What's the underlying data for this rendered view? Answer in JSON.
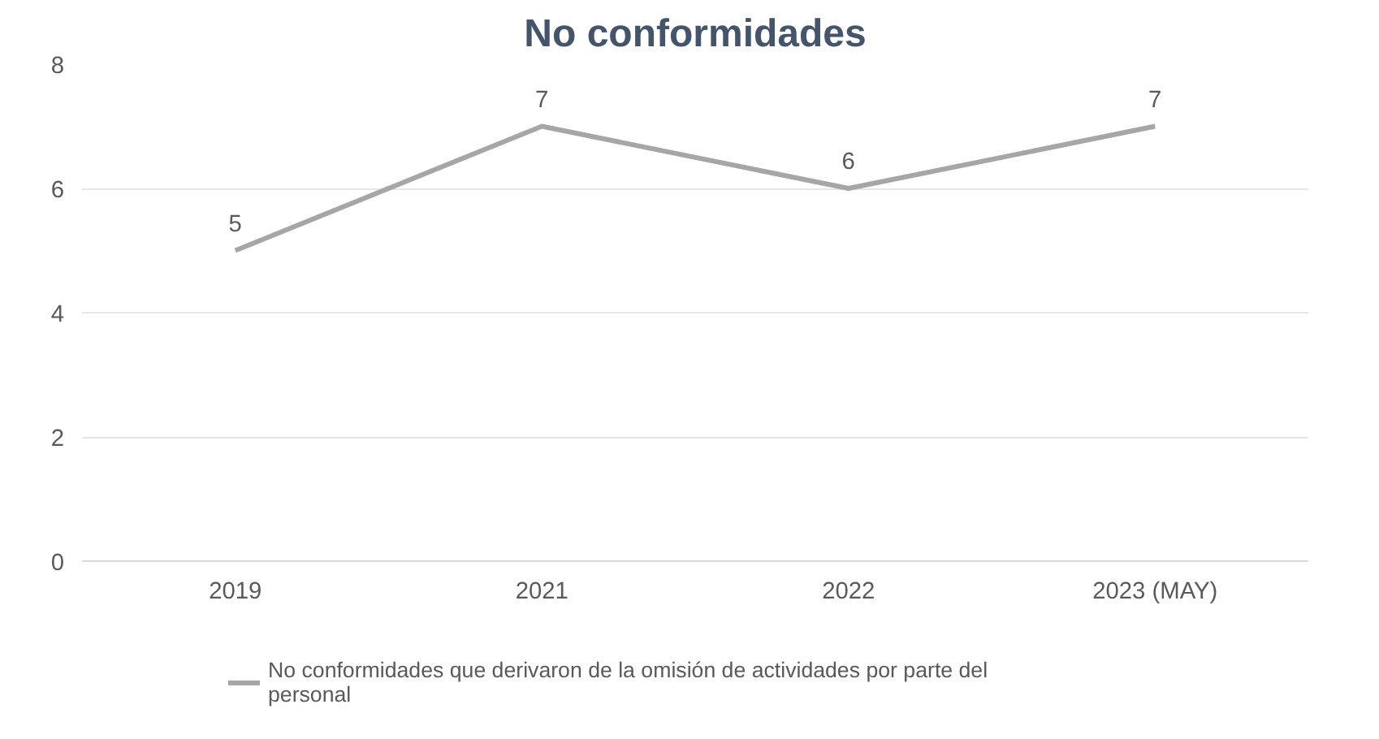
{
  "chart_data": {
    "type": "line",
    "title": "No conformidades",
    "categories": [
      "2019",
      "2021",
      "2022",
      "2023 (MAY)"
    ],
    "series": [
      {
        "name": "No conformidades que derivaron de la omisión de actividades por parte del personal",
        "color": "#a6a6a6",
        "values": [
          5,
          7,
          6,
          7
        ]
      }
    ],
    "ylim": [
      0,
      8
    ],
    "yticks": [
      0,
      2,
      4,
      6,
      8
    ],
    "grid": "y",
    "legend": "bottom",
    "data_labels": true,
    "marker": "none",
    "line_style": "solid"
  }
}
